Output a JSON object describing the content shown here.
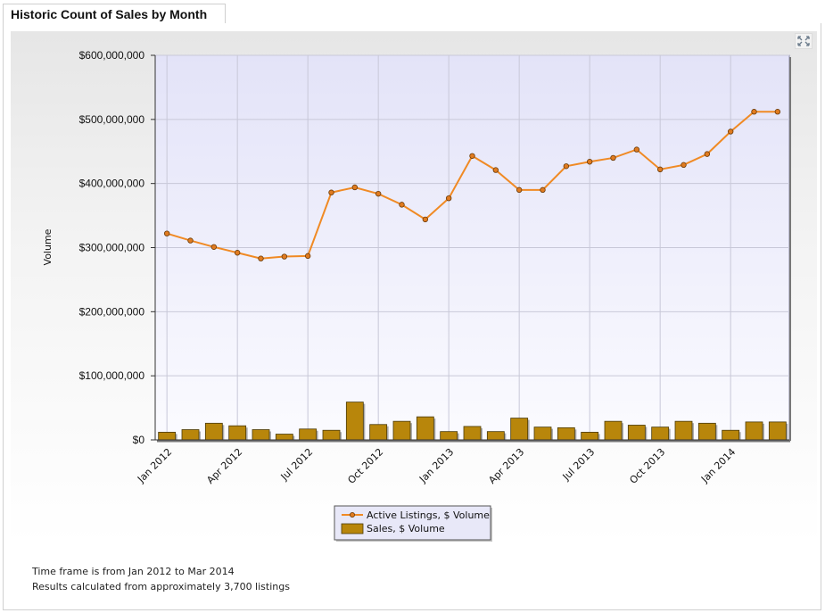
{
  "panel": {
    "title": "Historic Count of Sales by Month"
  },
  "footer": {
    "line1": "Time frame is from Jan 2012 to Mar 2014",
    "line2": "Results calculated from approximately 3,700 listings"
  },
  "icons": {
    "expand": "expand-icon"
  },
  "colors": {
    "line": "#f08a24",
    "bar": "#b8860b",
    "plot_bg_top": "#e3e3f8",
    "plot_bg_bottom": "#fbfbff"
  },
  "chart_data": {
    "type": "bar",
    "title": "",
    "xlabel": "",
    "ylabel": "Volume",
    "ylim": [
      0,
      600000000
    ],
    "yticks": [
      0,
      100000000,
      200000000,
      300000000,
      400000000,
      500000000,
      600000000
    ],
    "ytick_labels": [
      "$0",
      "$100,000,000",
      "$200,000,000",
      "$300,000,000",
      "$400,000,000",
      "$500,000,000",
      "$600,000,000"
    ],
    "categories": [
      "Jan 2012",
      "Feb 2012",
      "Mar 2012",
      "Apr 2012",
      "May 2012",
      "Jun 2012",
      "Jul 2012",
      "Aug 2012",
      "Sep 2012",
      "Oct 2012",
      "Nov 2012",
      "Dec 2012",
      "Jan 2013",
      "Feb 2013",
      "Mar 2013",
      "Apr 2013",
      "May 2013",
      "Jun 2013",
      "Jul 2013",
      "Aug 2013",
      "Sep 2013",
      "Oct 2013",
      "Nov 2013",
      "Dec 2013",
      "Jan 2014",
      "Feb 2014",
      "Mar 2014"
    ],
    "xtick_labels": [
      "Jan 2012",
      "Apr 2012",
      "Jul 2012",
      "Oct 2012",
      "Jan 2013",
      "Apr 2013",
      "Jul 2013",
      "Oct 2013",
      "Jan 2014"
    ],
    "grid": true,
    "legend_position": "bottom-center",
    "series": [
      {
        "name": "Active Listings, $ Volume",
        "type": "line",
        "values": [
          322000000,
          311000000,
          301000000,
          292000000,
          283000000,
          286000000,
          287000000,
          386000000,
          394000000,
          384000000,
          367000000,
          344000000,
          377000000,
          443000000,
          421000000,
          390000000,
          390000000,
          427000000,
          434000000,
          440000000,
          453000000,
          422000000,
          429000000,
          446000000,
          481000000,
          512000000,
          512000000
        ]
      },
      {
        "name": "Sales, $ Volume",
        "type": "bar",
        "values": [
          12000000,
          16000000,
          26000000,
          22000000,
          16000000,
          9000000,
          17000000,
          15000000,
          59000000,
          24000000,
          29000000,
          36000000,
          13000000,
          21000000,
          13000000,
          34000000,
          20000000,
          19000000,
          12000000,
          29000000,
          23000000,
          20000000,
          29000000,
          26000000,
          15000000,
          28000000,
          28000000
        ]
      }
    ]
  }
}
